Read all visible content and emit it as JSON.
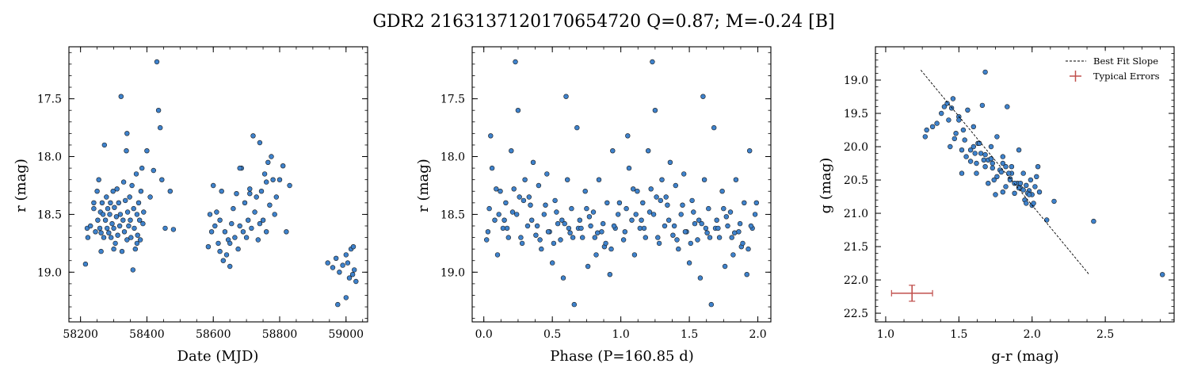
{
  "figure": {
    "title": "GDR2 2163137120170654720  Q=0.87; M=-0.24 [B]"
  },
  "colors": {
    "point_fill": "#3e82cc",
    "point_edge": "#1a1a1a",
    "error_bar": "#c0504d",
    "fit_line": "#000000"
  },
  "chart_data": [
    {
      "type": "scatter",
      "title": "",
      "xlabel": "Date (MJD)",
      "ylabel": "r (mag)",
      "xlim": [
        58165,
        59065
      ],
      "ylim": [
        19.43,
        17.05
      ],
      "y_inverted": true,
      "xticks": [
        58200,
        58400,
        58600,
        58800,
        59000
      ],
      "yticks": [
        17.5,
        18.0,
        18.5,
        19.0
      ],
      "series": [
        {
          "x": [
            58215,
            58220,
            58222,
            58230,
            58240,
            58245,
            58250,
            58252,
            58255,
            58258,
            58260,
            58262,
            58265,
            58268,
            58270,
            58272,
            58275,
            58278,
            58280,
            58282,
            58285,
            58288,
            58290,
            58292,
            58295,
            58298,
            58300,
            58302,
            58305,
            58308,
            58310,
            58312,
            58315,
            58318,
            58320,
            58322,
            58325,
            58328,
            58330,
            58332,
            58335,
            58338,
            58340,
            58342,
            58345,
            58348,
            58350,
            58352,
            58355,
            58358,
            58360,
            58362,
            58365,
            58368,
            58370,
            58372,
            58375,
            58378,
            58380,
            58382,
            58385,
            58388,
            58390,
            58400,
            58410,
            58420,
            58430,
            58435,
            58440,
            58445,
            58455,
            58470,
            58480,
            58240,
            58262,
            58300,
            58340,
            58370,
            58585,
            58590,
            58595,
            58600,
            58605,
            58610,
            58615,
            58620,
            58625,
            58630,
            58635,
            58640,
            58645,
            58650,
            58655,
            58660,
            58665,
            58670,
            58675,
            58680,
            58685,
            58690,
            58695,
            58700,
            58705,
            58710,
            58715,
            58720,
            58725,
            58730,
            58735,
            58740,
            58745,
            58750,
            58755,
            58760,
            58765,
            58770,
            58775,
            58780,
            58785,
            58790,
            58800,
            58810,
            58820,
            58830,
            58620,
            58650,
            58680,
            58710,
            58740,
            58760,
            58945,
            58960,
            58970,
            58980,
            58990,
            59000,
            59005,
            59010,
            59015,
            59020,
            59025,
            59030,
            59000,
            58975,
            59022
          ],
          "y": [
            18.93,
            18.62,
            18.7,
            18.6,
            18.45,
            18.65,
            18.3,
            18.55,
            18.2,
            18.62,
            18.48,
            18.66,
            18.4,
            18.5,
            18.7,
            17.9,
            18.55,
            18.35,
            18.62,
            18.45,
            18.66,
            18.5,
            18.4,
            18.7,
            18.58,
            18.3,
            18.62,
            18.44,
            18.75,
            18.52,
            18.28,
            18.68,
            18.4,
            18.6,
            18.5,
            17.48,
            18.82,
            18.55,
            18.22,
            18.65,
            18.38,
            17.95,
            18.72,
            18.48,
            18.6,
            18.35,
            18.55,
            18.7,
            18.25,
            18.98,
            18.45,
            18.62,
            18.8,
            18.15,
            18.5,
            18.68,
            18.4,
            18.55,
            18.72,
            18.3,
            18.1,
            18.58,
            18.48,
            17.95,
            18.35,
            18.12,
            17.18,
            17.6,
            17.75,
            18.2,
            18.62,
            18.3,
            18.63,
            18.4,
            18.82,
            18.8,
            17.8,
            18.75,
            18.78,
            18.5,
            18.65,
            18.25,
            18.6,
            18.48,
            18.75,
            18.55,
            18.3,
            18.9,
            18.65,
            18.85,
            18.72,
            18.95,
            18.58,
            18.45,
            18.7,
            18.32,
            18.8,
            18.6,
            18.1,
            18.65,
            18.4,
            18.7,
            18.55,
            18.28,
            18.62,
            17.82,
            18.48,
            18.35,
            18.72,
            17.88,
            18.3,
            18.55,
            18.15,
            18.65,
            18.05,
            18.42,
            18.0,
            18.2,
            18.5,
            18.35,
            18.2,
            18.08,
            18.65,
            18.25,
            18.82,
            18.75,
            18.1,
            18.32,
            18.58,
            18.22,
            18.92,
            18.96,
            18.88,
            19.0,
            18.94,
            18.85,
            18.92,
            19.05,
            18.8,
            19.02,
            18.98,
            19.08,
            19.22,
            19.28,
            18.78
          ]
        }
      ]
    },
    {
      "type": "scatter",
      "title": "",
      "xlabel": "Phase (P=160.85 d)",
      "ylabel": "r (mag)",
      "xlim": [
        -0.085,
        2.095
      ],
      "ylim": [
        19.43,
        17.05
      ],
      "y_inverted": true,
      "xticks": [
        0.0,
        0.5,
        1.0,
        1.5,
        2.0
      ],
      "yticks": [
        17.5,
        18.0,
        18.5,
        19.0
      ],
      "series": [
        {
          "x": [
            0.02,
            0.04,
            0.06,
            0.08,
            0.1,
            0.12,
            0.14,
            0.16,
            0.18,
            0.2,
            0.22,
            0.23,
            0.24,
            0.25,
            0.26,
            0.28,
            0.3,
            0.32,
            0.34,
            0.36,
            0.38,
            0.4,
            0.42,
            0.44,
            0.46,
            0.48,
            0.5,
            0.52,
            0.54,
            0.56,
            0.58,
            0.6,
            0.61,
            0.62,
            0.64,
            0.66,
            0.68,
            0.7,
            0.72,
            0.74,
            0.76,
            0.78,
            0.8,
            0.82,
            0.84,
            0.86,
            0.88,
            0.9,
            0.92,
            0.94,
            0.96,
            0.98,
            0.03,
            0.09,
            0.15,
            0.21,
            0.27,
            0.33,
            0.39,
            0.45,
            0.51,
            0.57,
            0.63,
            0.69,
            0.75,
            0.81,
            0.87,
            0.93,
            0.99,
            0.05,
            0.11,
            0.17,
            0.29,
            0.35,
            0.41,
            0.47,
            0.53,
            0.59,
            0.65,
            0.71,
            0.77,
            0.83,
            0.89,
            0.95,
            1.02,
            1.04,
            1.06,
            1.08,
            1.1,
            1.12,
            1.14,
            1.16,
            1.18,
            1.2,
            1.22,
            1.23,
            1.24,
            1.25,
            1.26,
            1.28,
            1.3,
            1.32,
            1.34,
            1.36,
            1.38,
            1.4,
            1.42,
            1.44,
            1.46,
            1.48,
            1.5,
            1.52,
            1.54,
            1.56,
            1.58,
            1.6,
            1.61,
            1.62,
            1.64,
            1.66,
            1.68,
            1.7,
            1.72,
            1.74,
            1.76,
            1.78,
            1.8,
            1.82,
            1.84,
            1.86,
            1.88,
            1.9,
            1.92,
            1.94,
            1.96,
            1.98,
            1.03,
            1.09,
            1.15,
            1.21,
            1.27,
            1.33,
            1.39,
            1.45,
            1.51,
            1.57,
            1.63,
            1.69,
            1.75,
            1.81,
            1.87,
            1.93,
            1.99,
            1.05,
            1.11,
            1.17,
            1.29,
            1.35,
            1.41,
            1.47,
            1.53,
            1.59,
            1.65,
            1.71,
            1.77,
            1.83,
            1.89,
            1.95
          ],
          "y": [
            18.72,
            18.45,
            18.1,
            18.55,
            18.85,
            18.3,
            18.62,
            18.4,
            18.7,
            17.95,
            18.28,
            17.18,
            18.5,
            17.6,
            18.35,
            18.75,
            18.2,
            18.6,
            18.42,
            18.05,
            18.68,
            18.25,
            18.8,
            18.5,
            18.15,
            18.65,
            18.92,
            18.38,
            18.58,
            18.72,
            19.05,
            17.48,
            18.2,
            18.62,
            18.45,
            19.28,
            17.75,
            18.55,
            18.7,
            18.3,
            18.95,
            18.6,
            18.48,
            18.85,
            18.2,
            18.65,
            18.78,
            18.4,
            19.02,
            17.95,
            18.62,
            18.5,
            18.65,
            18.28,
            18.55,
            18.48,
            18.7,
            18.35,
            18.6,
            18.42,
            18.75,
            18.55,
            18.66,
            18.62,
            18.45,
            18.7,
            18.58,
            18.8,
            18.4,
            17.82,
            18.5,
            18.62,
            18.38,
            18.55,
            18.72,
            18.65,
            18.48,
            18.58,
            18.7,
            18.62,
            18.52,
            18.66,
            18.75,
            18.6,
            18.72,
            18.45,
            18.1,
            18.55,
            18.85,
            18.3,
            18.62,
            18.4,
            18.7,
            17.95,
            18.28,
            17.18,
            18.5,
            17.6,
            18.35,
            18.75,
            18.2,
            18.6,
            18.42,
            18.05,
            18.68,
            18.25,
            18.8,
            18.5,
            18.15,
            18.65,
            18.92,
            18.38,
            18.58,
            18.72,
            19.05,
            17.48,
            18.2,
            18.62,
            18.45,
            19.28,
            17.75,
            18.55,
            18.7,
            18.3,
            18.95,
            18.6,
            18.48,
            18.85,
            18.2,
            18.65,
            18.78,
            18.4,
            19.02,
            17.95,
            18.62,
            18.5,
            18.65,
            18.28,
            18.55,
            18.48,
            18.7,
            18.35,
            18.6,
            18.42,
            18.75,
            18.55,
            18.66,
            18.62,
            18.45,
            18.7,
            18.58,
            18.8,
            18.4,
            17.82,
            18.5,
            18.62,
            18.38,
            18.55,
            18.72,
            18.65,
            18.48,
            18.58,
            18.7,
            18.62,
            18.52,
            18.66,
            18.75,
            18.6
          ]
        }
      ]
    },
    {
      "type": "scatter",
      "title": "",
      "xlabel": "g-r (mag)",
      "ylabel": "g (mag)",
      "xlim": [
        0.93,
        2.97
      ],
      "ylim": [
        22.63,
        18.5
      ],
      "y_inverted": true,
      "xticks": [
        1.0,
        1.5,
        2.0,
        2.5
      ],
      "yticks": [
        19.0,
        19.5,
        20.0,
        20.5,
        21.0,
        21.5,
        22.0,
        22.5
      ],
      "series": [
        {
          "x": [
            1.27,
            1.28,
            1.32,
            1.35,
            1.38,
            1.4,
            1.42,
            1.43,
            1.45,
            1.46,
            1.48,
            1.5,
            1.52,
            1.54,
            1.55,
            1.56,
            1.58,
            1.6,
            1.62,
            1.63,
            1.65,
            1.66,
            1.68,
            1.7,
            1.72,
            1.73,
            1.75,
            1.76,
            1.78,
            1.8,
            1.82,
            1.83,
            1.85,
            1.86,
            1.88,
            1.9,
            1.91,
            1.92,
            1.94,
            1.95,
            1.96,
            1.98,
            1.99,
            2.0,
            2.02,
            2.03,
            2.05,
            1.44,
            1.5,
            1.58,
            1.64,
            1.7,
            1.76,
            1.82,
            1.88,
            1.94,
            2.0,
            1.47,
            1.53,
            1.61,
            1.67,
            1.73,
            1.79,
            1.85,
            1.91,
            1.97,
            2.01,
            1.52,
            1.6,
            1.68,
            1.74,
            1.8,
            1.86,
            1.92,
            1.98,
            2.1,
            2.15,
            2.42,
            2.89,
            1.68,
            1.8,
            1.72,
            1.96,
            2.04,
            1.62,
            1.84
          ],
          "y": [
            19.85,
            19.75,
            19.7,
            19.65,
            19.5,
            19.4,
            19.35,
            19.6,
            19.42,
            19.28,
            19.8,
            19.55,
            20.05,
            19.9,
            20.15,
            19.45,
            20.22,
            19.7,
            20.4,
            19.95,
            20.1,
            19.38,
            20.3,
            20.55,
            20.0,
            20.25,
            20.72,
            19.85,
            20.35,
            20.15,
            20.6,
            19.4,
            20.48,
            20.3,
            20.7,
            20.55,
            20.05,
            20.62,
            20.4,
            20.8,
            20.58,
            20.66,
            20.5,
            20.72,
            20.6,
            20.45,
            20.68,
            20.0,
            19.6,
            20.05,
            19.95,
            20.2,
            20.45,
            20.3,
            20.55,
            20.65,
            20.88,
            19.88,
            19.75,
            20.1,
            20.2,
            20.32,
            20.38,
            20.5,
            20.62,
            20.7,
            20.85,
            20.4,
            20.0,
            20.12,
            20.5,
            20.25,
            20.4,
            20.55,
            20.72,
            21.1,
            20.82,
            21.12,
            21.92,
            18.88,
            20.68,
            20.18,
            20.85,
            20.3,
            20.25,
            20.4
          ]
        }
      ],
      "fit_line": {
        "x": [
          1.24,
          2.39
        ],
        "y": [
          18.85,
          21.92
        ]
      },
      "typical_error": {
        "x": 1.18,
        "y": 22.2,
        "xerr": 0.14,
        "yerr": 0.12
      },
      "legend": {
        "placement": "top-right",
        "entries": [
          "Best Fit Slope",
          "Typical Errors"
        ]
      }
    }
  ]
}
